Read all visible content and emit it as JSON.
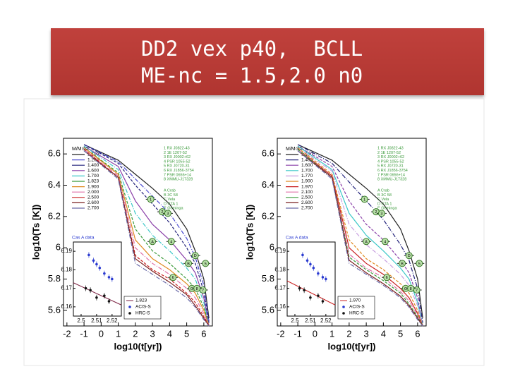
{
  "slide_title": [
    "DD2 vex p40,  BCLL",
    "ME-nc = 1.5,2.0 n0"
  ],
  "chart_data": [
    {
      "type": "line",
      "x_label": "log10(t[yr])",
      "y_label": "log10(Ts [K])",
      "legend_title": "M/M⊙=",
      "xlim": [
        -2.2,
        6.5
      ],
      "ylim": [
        5.5,
        6.7
      ],
      "xticks": [
        -2,
        -1,
        0,
        1,
        2,
        3,
        4,
        5,
        6
      ],
      "yticks": [
        5.6,
        5.8,
        6.0,
        6.2,
        6.4,
        6.6
      ],
      "x": [
        -1,
        1,
        2,
        3,
        4,
        5,
        5.5,
        6,
        6.3
      ],
      "series": [
        {
          "name": "1.100",
          "color": "#222222",
          "values": [
            6.66,
            6.56,
            6.47,
            6.38,
            6.28,
            6.12,
            5.98,
            5.8,
            5.55
          ]
        },
        {
          "name": "1.200",
          "color": "#4a4ad0",
          "values": [
            6.66,
            6.55,
            6.44,
            6.33,
            6.22,
            6.06,
            5.94,
            5.76,
            5.53
          ]
        },
        {
          "name": "1.400",
          "color": "#20207a",
          "values": [
            6.66,
            6.54,
            6.4,
            6.28,
            6.16,
            6.0,
            5.9,
            5.72,
            5.52
          ]
        },
        {
          "name": "1.600",
          "color": "#8a3fa8",
          "values": [
            6.65,
            6.52,
            6.3,
            6.15,
            6.05,
            5.92,
            5.84,
            5.68,
            5.5
          ]
        },
        {
          "name": "1.700",
          "color": "#3cc8c8",
          "values": [
            6.65,
            6.5,
            6.22,
            6.08,
            5.98,
            5.87,
            5.8,
            5.65,
            5.5
          ]
        },
        {
          "name": "1.823",
          "color": "#3a9a3a",
          "values": [
            6.64,
            6.48,
            6.12,
            5.98,
            5.9,
            5.8,
            5.74,
            5.62,
            5.5
          ]
        },
        {
          "name": "1.900",
          "color": "#e08a20",
          "values": [
            6.64,
            6.47,
            6.05,
            5.93,
            5.86,
            5.77,
            5.71,
            5.6,
            5.5
          ]
        },
        {
          "name": "2.000",
          "color": "#e070a8",
          "values": [
            6.63,
            6.46,
            6.0,
            5.9,
            5.83,
            5.74,
            5.68,
            5.58,
            5.5
          ]
        },
        {
          "name": "2.500",
          "color": "#c82020",
          "values": [
            6.63,
            6.45,
            5.95,
            5.86,
            5.8,
            5.71,
            5.65,
            5.56,
            5.5
          ]
        },
        {
          "name": "2.600",
          "color": "#7a2020",
          "values": [
            6.62,
            6.45,
            5.93,
            5.85,
            5.78,
            5.7,
            5.63,
            5.55,
            5.5
          ]
        },
        {
          "name": "2.700",
          "color": "#6a6aa8",
          "values": [
            6.62,
            6.44,
            5.9,
            5.83,
            5.76,
            5.68,
            5.62,
            5.54,
            5.5
          ]
        }
      ],
      "sources": [
        "1 RX J0822-43",
        "2 1E 1207-52",
        "3 RX J0002+62",
        "4 PSR 1055-52",
        "5 RX J0720-31",
        "6 RX J1856-3754",
        "7 PSR 0656+14",
        "8 XMMU-J17328"
      ],
      "remnants": [
        "A Crab",
        "B 3C 58",
        "C Vela",
        "D CTA 1",
        "E Geminga"
      ],
      "observations": {
        "labels": [
          "1",
          "2",
          "3",
          "A",
          "4",
          "B",
          "5",
          "6",
          "C",
          "7",
          "8",
          "D"
        ],
        "x": [
          2.9,
          3.57,
          3.9,
          3.0,
          4.1,
          5.1,
          6.1,
          4.2,
          5.3,
          5.95,
          5.6,
          5.5
        ],
        "y": [
          6.31,
          6.23,
          6.22,
          6.04,
          6.04,
          5.9,
          5.9,
          5.81,
          5.74,
          5.73,
          5.74,
          5.95
        ]
      },
      "inset": {
        "title": "Cas A data",
        "xlim": [
          2.495,
          2.526
        ],
        "ylim": [
          6.155,
          6.195
        ],
        "xticks": [
          2.5,
          2.51,
          2.52
        ],
        "yticks": [
          6.16,
          6.17,
          6.18,
          6.19
        ],
        "line": {
          "name": "1.823",
          "color": "#7a1f40",
          "x": [
            2.495,
            2.526
          ],
          "values": [
            6.173,
            6.161
          ]
        },
        "series": [
          {
            "name": "ACIS-S",
            "color": "#2a3ad0",
            "x": [
              2.505,
              2.508,
              2.51,
              2.512,
              2.515,
              2.518,
              2.52
            ],
            "values": [
              6.188,
              6.185,
              6.183,
              6.181,
              6.178,
              6.176,
              6.175
            ]
          },
          {
            "name": "HRC-S",
            "color": "#111111",
            "x": [
              2.503,
              2.506,
              2.51,
              2.515,
              2.518
            ],
            "values": [
              6.17,
              6.169,
              6.165,
              6.166,
              6.163
            ]
          }
        ]
      }
    },
    {
      "type": "line",
      "x_label": "log10(t[yr])",
      "y_label": "log10(Ts [K])",
      "legend_title": "M/M⊙=",
      "xlim": [
        -2.2,
        6.5
      ],
      "ylim": [
        5.5,
        6.7
      ],
      "xticks": [
        -2,
        -1,
        0,
        1,
        2,
        3,
        4,
        5,
        6
      ],
      "yticks": [
        5.6,
        5.8,
        6.0,
        6.2,
        6.4,
        6.6
      ],
      "x": [
        -1,
        1,
        2,
        3,
        4,
        5,
        5.5,
        6,
        6.3
      ],
      "series": [
        {
          "name": "1.100",
          "color": "#222222",
          "values": [
            6.66,
            6.56,
            6.47,
            6.38,
            6.28,
            6.12,
            5.98,
            5.8,
            5.55
          ]
        },
        {
          "name": "1.400",
          "color": "#20207a",
          "values": [
            6.66,
            6.54,
            6.42,
            6.3,
            6.18,
            6.02,
            5.92,
            5.74,
            5.52
          ]
        },
        {
          "name": "1.600",
          "color": "#8a3fa8",
          "values": [
            6.65,
            6.52,
            6.3,
            6.15,
            6.05,
            5.92,
            5.84,
            5.68,
            5.5
          ]
        },
        {
          "name": "1.700",
          "color": "#3cc8c8",
          "values": [
            6.65,
            6.5,
            6.22,
            6.08,
            5.98,
            5.87,
            5.8,
            5.65,
            5.5
          ]
        },
        {
          "name": "1.770",
          "color": "#c8a0e0",
          "values": [
            6.64,
            6.49,
            6.15,
            6.02,
            5.93,
            5.83,
            5.76,
            5.63,
            5.5
          ]
        },
        {
          "name": "1.900",
          "color": "#e08a20",
          "values": [
            6.64,
            6.47,
            6.05,
            5.93,
            5.86,
            5.77,
            5.71,
            5.6,
            5.5
          ]
        },
        {
          "name": "1.970",
          "color": "#c82020",
          "values": [
            6.63,
            6.46,
            6.0,
            5.9,
            5.83,
            5.74,
            5.68,
            5.58,
            5.5
          ]
        },
        {
          "name": "2.100",
          "color": "#e070a8",
          "values": [
            6.63,
            6.45,
            5.96,
            5.87,
            5.81,
            5.72,
            5.66,
            5.57,
            5.5
          ]
        },
        {
          "name": "2.500",
          "color": "#3a9a3a",
          "values": [
            6.63,
            6.45,
            5.94,
            5.86,
            5.79,
            5.71,
            5.64,
            5.56,
            5.5
          ]
        },
        {
          "name": "2.600",
          "color": "#7a2020",
          "values": [
            6.62,
            6.45,
            5.92,
            5.84,
            5.77,
            5.69,
            5.63,
            5.55,
            5.5
          ]
        },
        {
          "name": "2.700",
          "color": "#6a6aa8",
          "values": [
            6.62,
            6.44,
            5.9,
            5.83,
            5.76,
            5.68,
            5.62,
            5.54,
            5.5
          ]
        }
      ],
      "sources": [
        "1 RX J0822-43",
        "2 1E 1207-52",
        "3 RX J0002+62",
        "4 PSR 1055-52",
        "5 RX J0720-31",
        "6 RX J1856-3754",
        "7 PSR 0656+14",
        "8 XMMU-J17328"
      ],
      "remnants": [
        "A Crab",
        "B 3C 58",
        "C Vela",
        "D CTA 1",
        "E Geminga"
      ],
      "observations": {
        "labels": [
          "1",
          "2",
          "3",
          "A",
          "4",
          "B",
          "5",
          "6",
          "C",
          "7",
          "8",
          "D"
        ],
        "x": [
          2.9,
          3.57,
          3.9,
          3.0,
          4.1,
          5.1,
          6.1,
          4.2,
          5.3,
          5.95,
          5.6,
          5.5
        ],
        "y": [
          6.31,
          6.23,
          6.22,
          6.04,
          6.04,
          5.9,
          5.9,
          5.81,
          5.74,
          5.73,
          5.74,
          5.95
        ]
      },
      "inset": {
        "title": "Cas A data",
        "xlim": [
          2.495,
          2.526
        ],
        "ylim": [
          6.155,
          6.195
        ],
        "xticks": [
          2.5,
          2.51,
          2.52
        ],
        "yticks": [
          6.16,
          6.17,
          6.18,
          6.19
        ],
        "line": {
          "name": "1.970",
          "color": "#c82020",
          "x": [
            2.495,
            2.526
          ],
          "values": [
            6.174,
            6.161
          ]
        },
        "series": [
          {
            "name": "ACIS-S",
            "color": "#2a3ad0",
            "x": [
              2.505,
              2.508,
              2.51,
              2.512,
              2.515,
              2.518,
              2.52
            ],
            "values": [
              6.188,
              6.185,
              6.183,
              6.181,
              6.178,
              6.176,
              6.175
            ]
          },
          {
            "name": "HRC-S",
            "color": "#111111",
            "x": [
              2.503,
              2.506,
              2.51,
              2.515,
              2.518
            ],
            "values": [
              6.17,
              6.169,
              6.165,
              6.166,
              6.163
            ]
          }
        ]
      }
    }
  ]
}
